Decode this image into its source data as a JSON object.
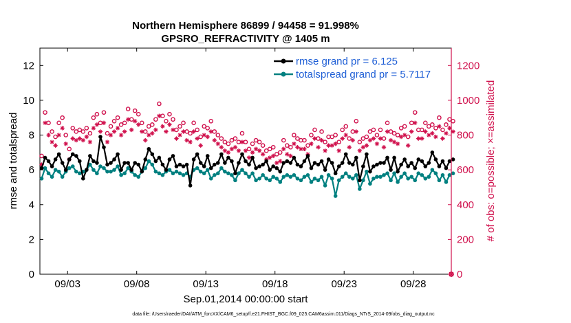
{
  "chart_data": {
    "type": "line",
    "title_line1": "Northern Hemisphere 86899 / 94458 = 91.998%",
    "title_line2": "GPSRO_REFRACTIVITY @ 1405 m",
    "xlabel": "Sep.01,2014 00:00:00 start",
    "ylabel_left": "rmse and totalspread",
    "ylabel_right": "# of obs: o=possible; ×=assimilated",
    "footnote": "data file: /Users/raeder/DAI/ATM_forcXX/CAM6_setup/f.e21.FHIST_BGC.f09_025.CAM6assim.011/Diags_NTrS_2014-09/obs_diag_output.nc",
    "x_range": [
      1.0,
      30.75
    ],
    "ylim_left": [
      0,
      13
    ],
    "ylim_right": [
      0,
      1300
    ],
    "x_ticks": [
      {
        "x": 3,
        "label": "09/03"
      },
      {
        "x": 8,
        "label": "09/08"
      },
      {
        "x": 13,
        "label": "09/13"
      },
      {
        "x": 18,
        "label": "09/18"
      },
      {
        "x": 23,
        "label": "09/23"
      },
      {
        "x": 28,
        "label": "09/28"
      }
    ],
    "y_ticks_left": [
      "0",
      "2",
      "4",
      "6",
      "8",
      "10",
      "12"
    ],
    "y_ticks_right": [
      "0",
      "200",
      "400",
      "600",
      "800",
      "1000",
      "1200"
    ],
    "legend": [
      {
        "label": "rmse grand pr = 6.125",
        "color": "#000000"
      },
      {
        "label": "totalspread grand pr = 5.7117",
        "color": "#008080"
      }
    ],
    "colors": {
      "rmse": "#000000",
      "totalspread": "#008080",
      "obs": "#d0104c"
    },
    "series_params": {
      "start_day": 1.125,
      "step_days": 0.25,
      "count": 120,
      "rmse": [
        6.1,
        6.7,
        6.5,
        6.2,
        6.6,
        6.9,
        6.4,
        6.0,
        6.6,
        6.9,
        6.8,
        6.5,
        5.5,
        6.0,
        6.8,
        6.5,
        6.4,
        7.9,
        7.3,
        6.3,
        6.4,
        6.6,
        6.9,
        6.0,
        6.4,
        6.4,
        6.0,
        6.4,
        6.3,
        5.9,
        6.6,
        7.2,
        6.9,
        6.5,
        6.7,
        6.3,
        6.0,
        6.6,
        6.8,
        6.2,
        6.3,
        6.2,
        6.3,
        5.1,
        6.6,
        6.9,
        6.4,
        6.2,
        6.8,
        6.1,
        6.3,
        6.4,
        6.9,
        6.4,
        6.7,
        6.5,
        5.8,
        6.4,
        6.9,
        6.5,
        6.3,
        6.7,
        6.1,
        6.2,
        6.3,
        6.5,
        6.0,
        6.2,
        6.1,
        5.9,
        6.4,
        6.5,
        6.4,
        6.7,
        6.3,
        6.2,
        6.5,
        6.8,
        6.1,
        6.4,
        6.3,
        6.5,
        6.0,
        6.6,
        6.4,
        5.8,
        6.2,
        6.4,
        6.9,
        6.4,
        6.3,
        6.7,
        5.4,
        6.2,
        6.9,
        5.9,
        6.2,
        6.3,
        6.4,
        6.4,
        6.7,
        6.0,
        6.7,
        5.9,
        6.3,
        6.6,
        6.2,
        6.4,
        6.1,
        6.6,
        6.5,
        6.2,
        6.4,
        7.0,
        6.6,
        6.2,
        6.5,
        6.1,
        6.5,
        6.6
      ],
      "spread": [
        5.5,
        6.1,
        5.8,
        5.6,
        6.0,
        5.9,
        5.6,
        5.9,
        6.1,
        6.2,
        5.9,
        5.8,
        5.9,
        6.0,
        6.3,
        6.0,
        5.8,
        6.2,
        6.1,
        5.9,
        5.9,
        6.0,
        6.2,
        5.7,
        5.8,
        6.1,
        5.9,
        5.7,
        5.6,
        5.9,
        6.1,
        6.5,
        6.3,
        5.9,
        5.8,
        5.7,
        5.9,
        6.0,
        5.8,
        5.9,
        5.8,
        5.7,
        5.8,
        5.6,
        6.0,
        6.1,
        5.9,
        5.8,
        6.0,
        5.5,
        5.7,
        5.8,
        6.1,
        5.9,
        5.8,
        5.7,
        5.4,
        5.8,
        6.0,
        5.8,
        5.6,
        5.8,
        5.4,
        5.5,
        5.7,
        5.5,
        5.4,
        5.6,
        5.5,
        5.3,
        5.6,
        5.7,
        5.6,
        5.7,
        5.5,
        5.4,
        5.6,
        5.7,
        5.3,
        5.5,
        5.4,
        5.6,
        5.1,
        5.7,
        5.5,
        4.5,
        5.4,
        5.6,
        5.8,
        5.6,
        5.5,
        5.7,
        4.9,
        5.4,
        5.9,
        5.2,
        5.5,
        5.6,
        5.6,
        5.7,
        5.8,
        5.4,
        5.8,
        5.3,
        5.6,
        5.8,
        5.5,
        5.6,
        5.4,
        5.8,
        5.7,
        5.5,
        5.6,
        6.0,
        5.8,
        5.4,
        5.7,
        5.3,
        5.7,
        5.8
      ],
      "possible": [
        680,
        930,
        870,
        820,
        790,
        870,
        900,
        800,
        720,
        840,
        820,
        830,
        820,
        840,
        810,
        900,
        920,
        870,
        930,
        810,
        850,
        880,
        900,
        860,
        870,
        950,
        890,
        940,
        920,
        870,
        820,
        850,
        860,
        890,
        980,
        910,
        880,
        920,
        890,
        830,
        850,
        870,
        820,
        810,
        870,
        830,
        790,
        850,
        840,
        880,
        820,
        800,
        780,
        760,
        750,
        770,
        780,
        760,
        810,
        760,
        720,
        750,
        770,
        760,
        740,
        710,
        720,
        730,
        690,
        700,
        770,
        740,
        730,
        800,
        780,
        770,
        770,
        740,
        800,
        830,
        780,
        820,
        760,
        790,
        790,
        800,
        760,
        830,
        850,
        780,
        820,
        880,
        760,
        780,
        790,
        820,
        830,
        800,
        830,
        780,
        870,
        820,
        810,
        800,
        840,
        850,
        790,
        870,
        930,
        830,
        830,
        870,
        850,
        860,
        840,
        900,
        830,
        860,
        890,
        880
      ],
      "assimilated": [
        630,
        870,
        800,
        760,
        740,
        800,
        840,
        750,
        660,
        780,
        770,
        780,
        770,
        790,
        760,
        840,
        860,
        820,
        870,
        760,
        800,
        820,
        840,
        800,
        820,
        890,
        830,
        880,
        860,
        820,
        770,
        800,
        810,
        830,
        910,
        850,
        820,
        860,
        830,
        780,
        800,
        820,
        770,
        760,
        820,
        780,
        740,
        800,
        790,
        820,
        770,
        750,
        730,
        710,
        700,
        720,
        730,
        710,
        760,
        710,
        670,
        700,
        720,
        710,
        690,
        660,
        670,
        680,
        640,
        650,
        720,
        690,
        680,
        750,
        730,
        720,
        720,
        690,
        750,
        780,
        730,
        770,
        710,
        740,
        740,
        750,
        710,
        780,
        800,
        730,
        770,
        820,
        710,
        730,
        740,
        770,
        780,
        750,
        780,
        730,
        820,
        770,
        760,
        750,
        790,
        800,
        740,
        820,
        870,
        780,
        780,
        820,
        800,
        810,
        790,
        850,
        780,
        810,
        840,
        820
      ]
    }
  }
}
